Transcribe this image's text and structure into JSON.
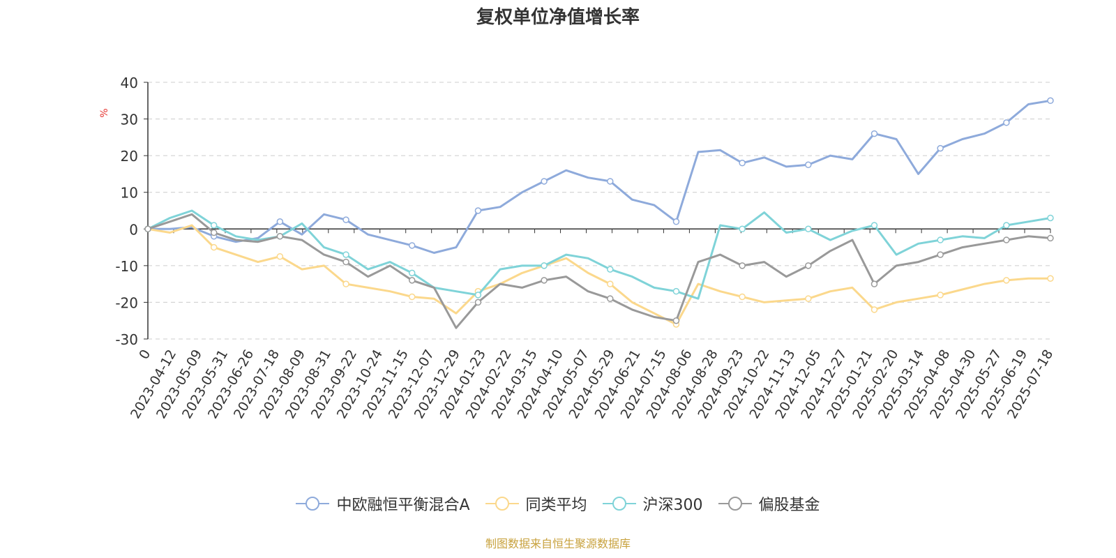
{
  "chart_data": {
    "type": "line",
    "title": "复权单位净值增长率",
    "ylabel": "%",
    "ylim": [
      -30,
      40
    ],
    "yticks": [
      "40",
      "30",
      "20",
      "10",
      "0",
      "-10",
      "-20",
      "-30"
    ],
    "x_tick_labels": [
      "0",
      "2023-04-12",
      "2023-05-09",
      "2023-05-31",
      "2023-06-26",
      "2023-07-18",
      "2023-08-09",
      "2023-08-31",
      "2023-09-22",
      "2023-10-24",
      "2023-11-15",
      "2023-12-07",
      "2023-12-29",
      "2024-01-23",
      "2024-02-22",
      "2024-03-15",
      "2024-04-10",
      "2024-05-07",
      "2024-05-29",
      "2024-06-21",
      "2024-07-15",
      "2024-08-06",
      "2024-08-28",
      "2024-09-23",
      "2024-10-22",
      "2024-11-13",
      "2024-12-05",
      "2024-12-27",
      "2025-01-21",
      "2025-02-20",
      "2025-03-14",
      "2025-04-08",
      "2025-04-30",
      "2025-05-27",
      "2025-06-19",
      "2025-07-18"
    ],
    "grid": true,
    "legend_position": "bottom",
    "series": [
      {
        "name": "中欧融恒平衡混合A",
        "color": "#8eaadb",
        "values": [
          0,
          0,
          0.5,
          -2,
          -3.5,
          -2.5,
          2,
          -1.5,
          4,
          2.5,
          -1.5,
          -3,
          -4.5,
          -6.5,
          -5,
          5,
          6,
          10,
          13,
          16,
          14,
          13,
          8,
          6.5,
          2,
          21,
          21.5,
          18,
          19.5,
          17,
          17.5,
          20,
          19,
          26,
          24.5,
          15,
          22,
          24.5,
          26,
          29,
          34,
          35
        ]
      },
      {
        "name": "同类平均",
        "color": "#fbd88c",
        "values": [
          0,
          -1,
          1,
          -5,
          -7,
          -9,
          -7.5,
          -11,
          -10,
          -15,
          -16,
          -17,
          -18.5,
          -19,
          -23,
          -17,
          -15,
          -12,
          -10,
          -8,
          -12,
          -15,
          -20,
          -23,
          -26,
          -15,
          -17,
          -18.5,
          -20,
          -19.5,
          -19,
          -17,
          -16,
          -22,
          -20,
          -19,
          -18,
          -16.5,
          -15,
          -14,
          -13.5,
          -13.5
        ]
      },
      {
        "name": "沪深300",
        "color": "#7fd3d8",
        "values": [
          0,
          3,
          5,
          1,
          -2,
          -3,
          -2,
          1.5,
          -5,
          -7,
          -11,
          -9,
          -12,
          -16,
          -17,
          -18,
          -11,
          -10,
          -10,
          -7,
          -8,
          -11,
          -13,
          -16,
          -17,
          -19,
          1,
          0,
          4.5,
          -1,
          0,
          -3,
          -0.5,
          1,
          -7,
          -4,
          -3,
          -2,
          -2.5,
          1,
          2,
          3
        ]
      },
      {
        "name": "偏股基金",
        "color": "#999999",
        "values": [
          0,
          2,
          4,
          -1,
          -3,
          -3.5,
          -2,
          -3,
          -7,
          -9,
          -13,
          -10,
          -14,
          -16,
          -27,
          -20,
          -15,
          -16,
          -14,
          -13,
          -17,
          -19,
          -22,
          -24,
          -25,
          -9,
          -7,
          -10,
          -9,
          -13,
          -10,
          -6,
          -3,
          -15,
          -10,
          -9,
          -7,
          -5,
          -4,
          -3,
          -2,
          -2.5
        ]
      }
    ]
  },
  "source_note": "制图数据来自恒生聚源数据库"
}
